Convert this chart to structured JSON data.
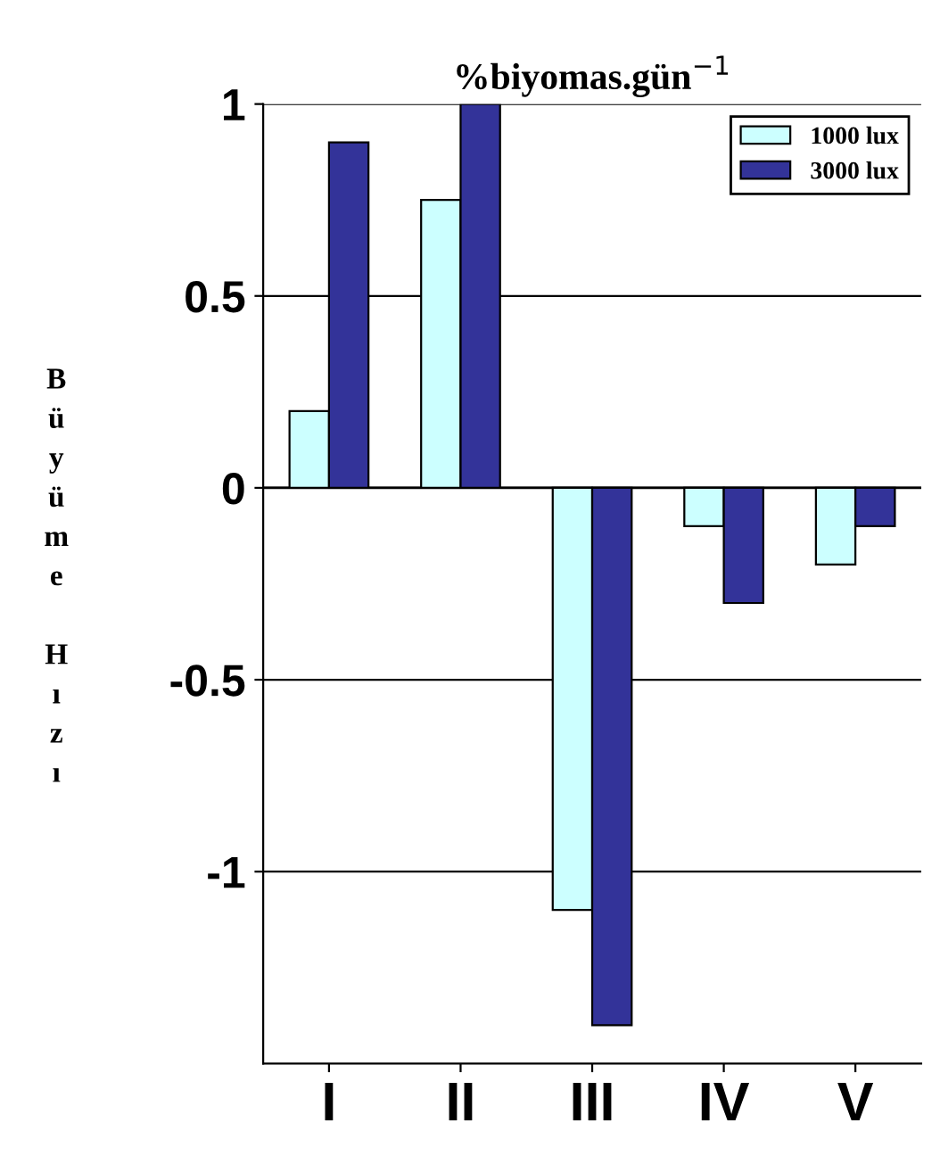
{
  "chart_data": {
    "type": "bar",
    "title": "%biyomas.gün$^{−1}$",
    "ylabel": "Büyüme Hızı",
    "categories": [
      "I",
      "II",
      "III",
      "IV",
      "V"
    ],
    "series": [
      {
        "name": "1000 lux",
        "color": "#ccffff",
        "values": [
          0.2,
          0.75,
          -1.1,
          -0.1,
          -0.2
        ]
      },
      {
        "name": "3000 lux",
        "color": "#333399",
        "values": [
          0.9,
          1.0,
          -1.4,
          -0.3,
          -0.1
        ]
      }
    ],
    "ylim": [
      -1.5,
      1
    ],
    "yticks": [
      -1,
      -0.5,
      0,
      0.5,
      1
    ],
    "grid": "y",
    "legend": "top right"
  }
}
